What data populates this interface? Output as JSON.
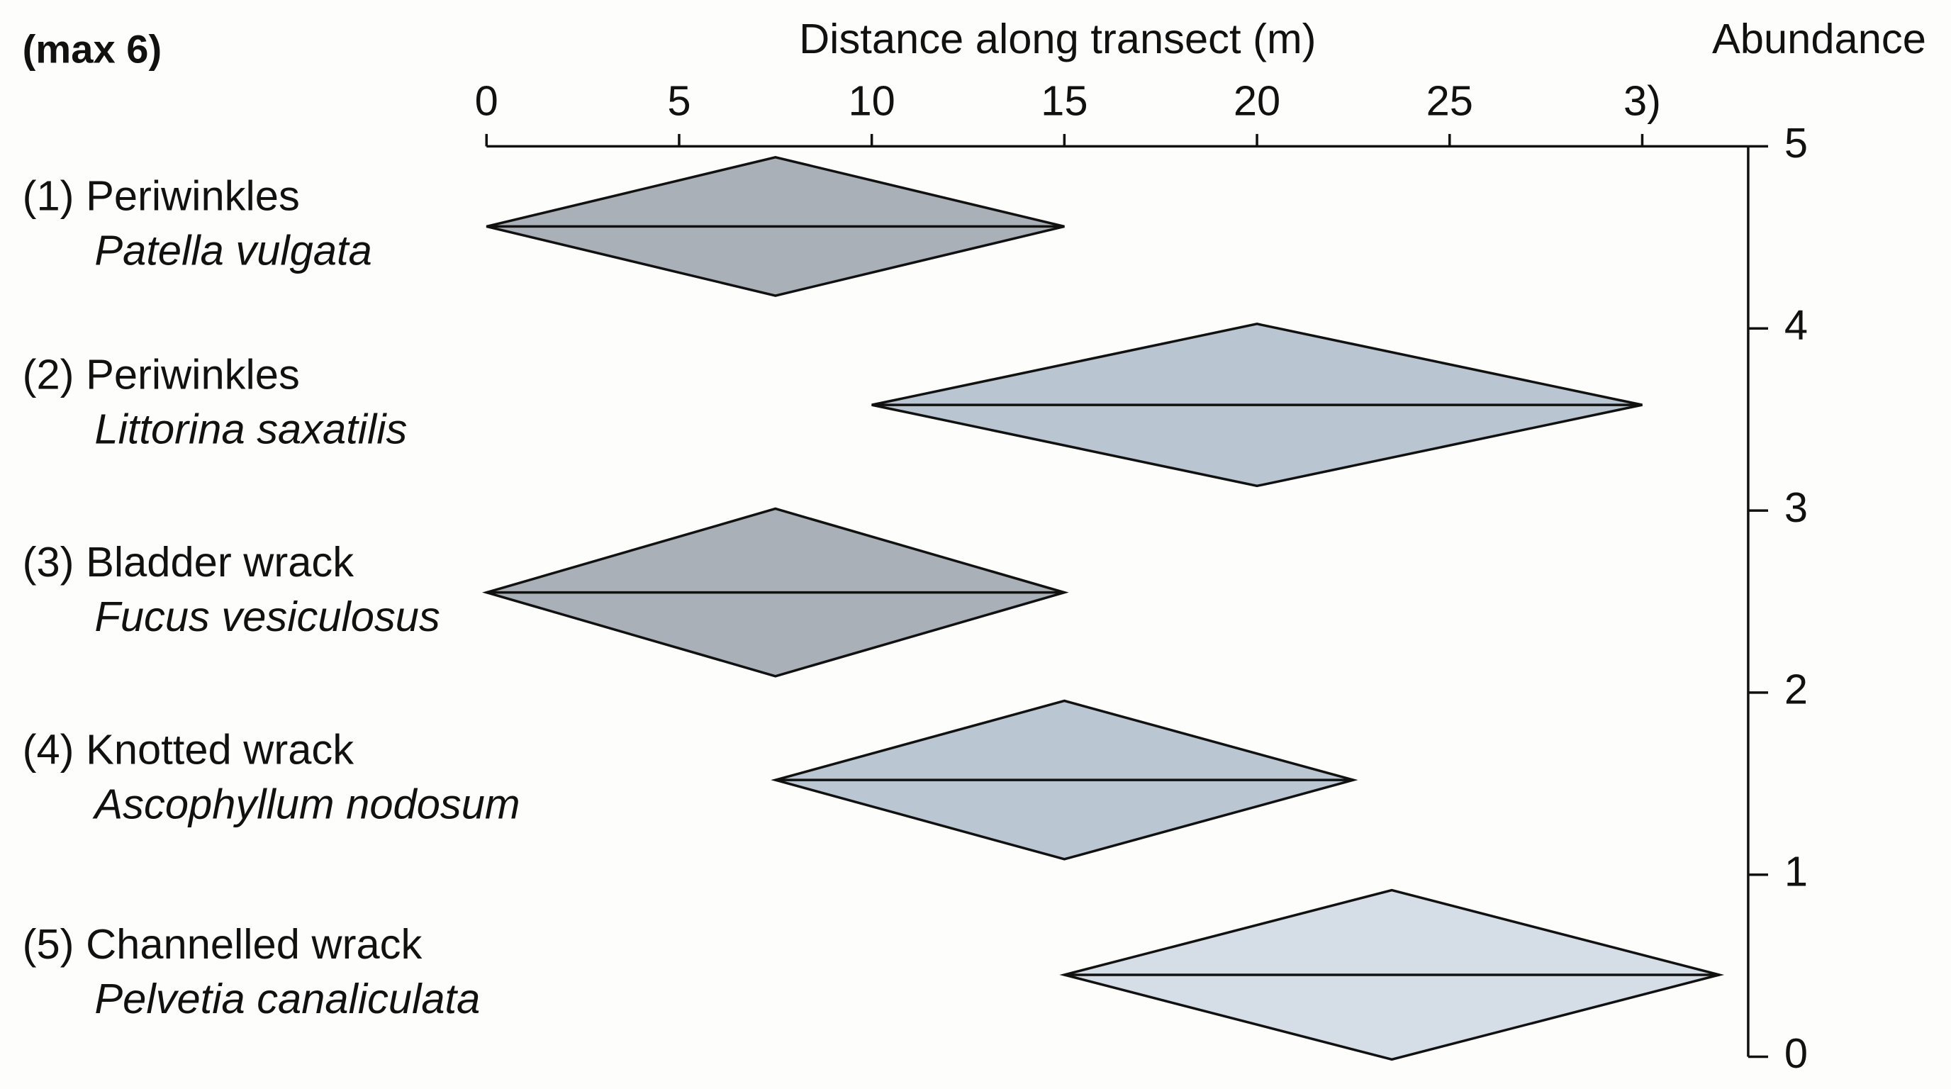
{
  "chart_data": {
    "type": "diamond",
    "title": "Distance along transect (m)",
    "corner_label": "(max 6)",
    "y_label": "Abundance",
    "xlim": [
      0,
      32.75
    ],
    "xticks": [
      0,
      5,
      10,
      15,
      20,
      25,
      {
        "value": 30,
        "label": "3)"
      }
    ],
    "ylim": [
      0,
      5
    ],
    "yticks": [
      0,
      1,
      2,
      3,
      4,
      5
    ],
    "series": [
      {
        "name": "(1) Periwinkles",
        "species": "Patella vulgata",
        "color": "#aab0b7",
        "start": 0,
        "peak": 7.5,
        "end": 15,
        "y": 4.56,
        "height": 0.76
      },
      {
        "name": "(2) Periwinkles",
        "species": "Littorina saxatilis",
        "color": "#b9c5d0",
        "start": 10,
        "peak": 20,
        "end": 30,
        "y": 3.58,
        "height": 0.89
      },
      {
        "name": "(3) Bladder wrack",
        "species": "Fucus vesiculosus",
        "color": "#aab0b7",
        "start": 0,
        "peak": 7.5,
        "end": 15,
        "y": 2.55,
        "height": 0.92
      },
      {
        "name": "(4) Knotted wrack",
        "species": "Ascophyllum nodosum",
        "color": "#bac7d3",
        "start": 7.5,
        "peak": 15,
        "end": 22.5,
        "y": 1.52,
        "height": 0.87
      },
      {
        "name": "(5) Channelled wrack",
        "species": "Pelvetia canaliculata",
        "color": "#d5dde6",
        "start": 15,
        "peak": 23.5,
        "end": 32,
        "y": 0.45,
        "height": 0.93
      }
    ]
  }
}
